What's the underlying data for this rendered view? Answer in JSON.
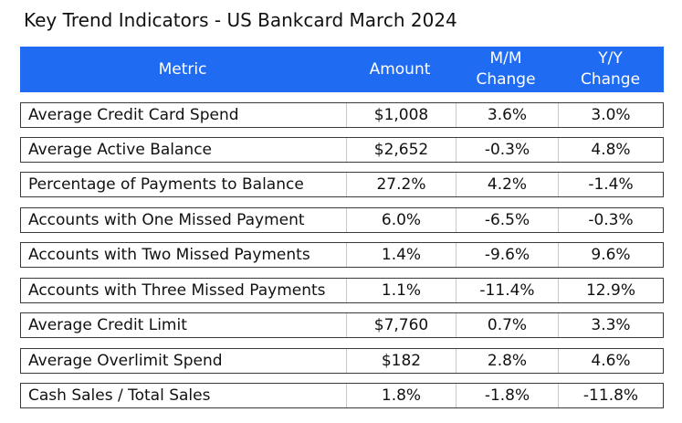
{
  "title": "Key Trend Indicators - US Bankcard March 2024",
  "header": {
    "metric": "Metric",
    "amount": "Amount",
    "mm_line1": "M/M",
    "mm_line2": "Change",
    "yy_line1": "Y/Y",
    "yy_line2": "Change",
    "background_color": "#1f6bf2",
    "text_color": "#ffffff"
  },
  "rows": [
    {
      "metric": "Average Credit Card Spend",
      "amount": "$1,008",
      "mm": "3.6%",
      "yy": "3.0%"
    },
    {
      "metric": "Average Active Balance",
      "amount": "$2,652",
      "mm": "-0.3%",
      "yy": "4.8%"
    },
    {
      "metric": "Percentage of Payments to Balance",
      "amount": "27.2%",
      "mm": "4.2%",
      "yy": "-1.4%"
    },
    {
      "metric": "Accounts with One Missed Payment",
      "amount": "6.0%",
      "mm": "-6.5%",
      "yy": "-0.3%"
    },
    {
      "metric": "Accounts with Two Missed Payments",
      "amount": "1.4%",
      "mm": "-9.6%",
      "yy": "9.6%"
    },
    {
      "metric": "Accounts with Three Missed Payments",
      "amount": "1.1%",
      "mm": "-11.4%",
      "yy": "12.9%"
    },
    {
      "metric": "Average Credit Limit",
      "amount": "$7,760",
      "mm": "0.7%",
      "yy": "3.3%"
    },
    {
      "metric": "Average Overlimit Spend",
      "amount": "$182",
      "mm": "2.8%",
      "yy": "4.6%"
    },
    {
      "metric": "Cash Sales / Total Sales",
      "amount": "1.8%",
      "mm": "-1.8%",
      "yy": "-11.8%"
    }
  ]
}
